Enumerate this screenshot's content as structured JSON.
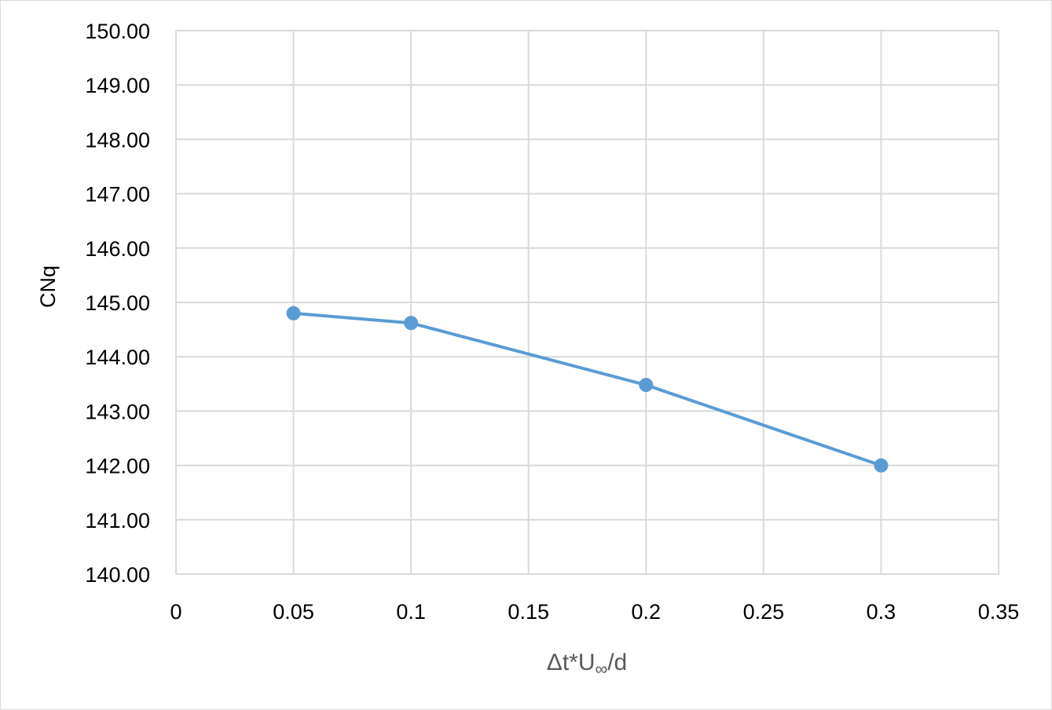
{
  "chart_data": {
    "type": "line",
    "x": [
      0.05,
      0.1,
      0.2,
      0.3
    ],
    "series": [
      {
        "values": [
          144.8,
          144.62,
          143.48,
          142.0
        ],
        "color": "#5b9bd5"
      }
    ],
    "xlabel": "Δt*U",
    "xlabel_sub": "∞",
    "xlabel_suffix": "/d",
    "ylabel": "CNq",
    "xlim": [
      0,
      0.35
    ],
    "ylim": [
      140,
      150
    ],
    "x_ticks": [
      "0",
      "0.05",
      "0.1",
      "0.15",
      "0.2",
      "0.25",
      "0.3",
      "0.35"
    ],
    "y_ticks": [
      "140.00",
      "141.00",
      "142.00",
      "143.00",
      "144.00",
      "145.00",
      "146.00",
      "147.00",
      "148.00",
      "149.00",
      "150.00"
    ],
    "grid": true,
    "gridline_color": "#d9d9d9"
  }
}
